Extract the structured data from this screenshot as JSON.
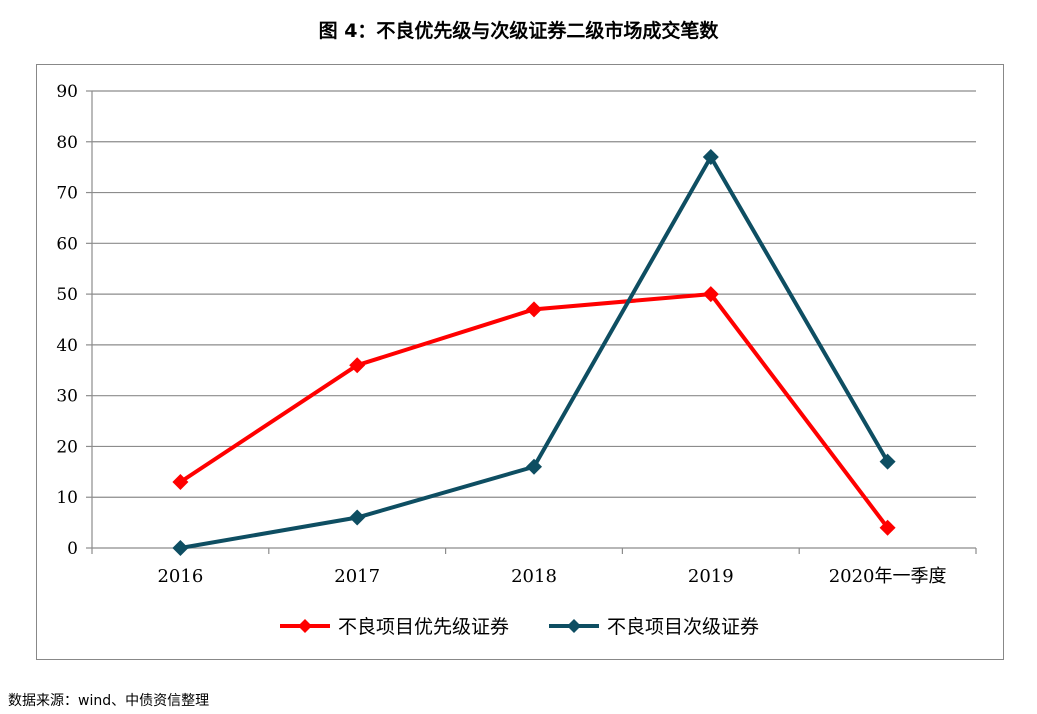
{
  "chart_data": {
    "type": "line",
    "title": "图 4：不良优先级与次级证券二级市场成交笔数",
    "xlabel": "",
    "ylabel": "",
    "categories": [
      "2016",
      "2017",
      "2018",
      "2019",
      "2020年一季度"
    ],
    "ylim": [
      0,
      90
    ],
    "yticks": [
      0,
      10,
      20,
      30,
      40,
      50,
      60,
      70,
      80,
      90
    ],
    "grid": true,
    "legend_position": "bottom",
    "series": [
      {
        "name": "不良项目优先级证券",
        "values": [
          13,
          36,
          47,
          50,
          4
        ],
        "color": "#ff0000",
        "marker": "diamond"
      },
      {
        "name": "不良项目次级证券",
        "values": [
          0,
          6,
          16,
          77,
          17
        ],
        "color": "#0e4e62",
        "marker": "diamond"
      }
    ]
  },
  "source": "数据来源：wind、中债资信整理"
}
